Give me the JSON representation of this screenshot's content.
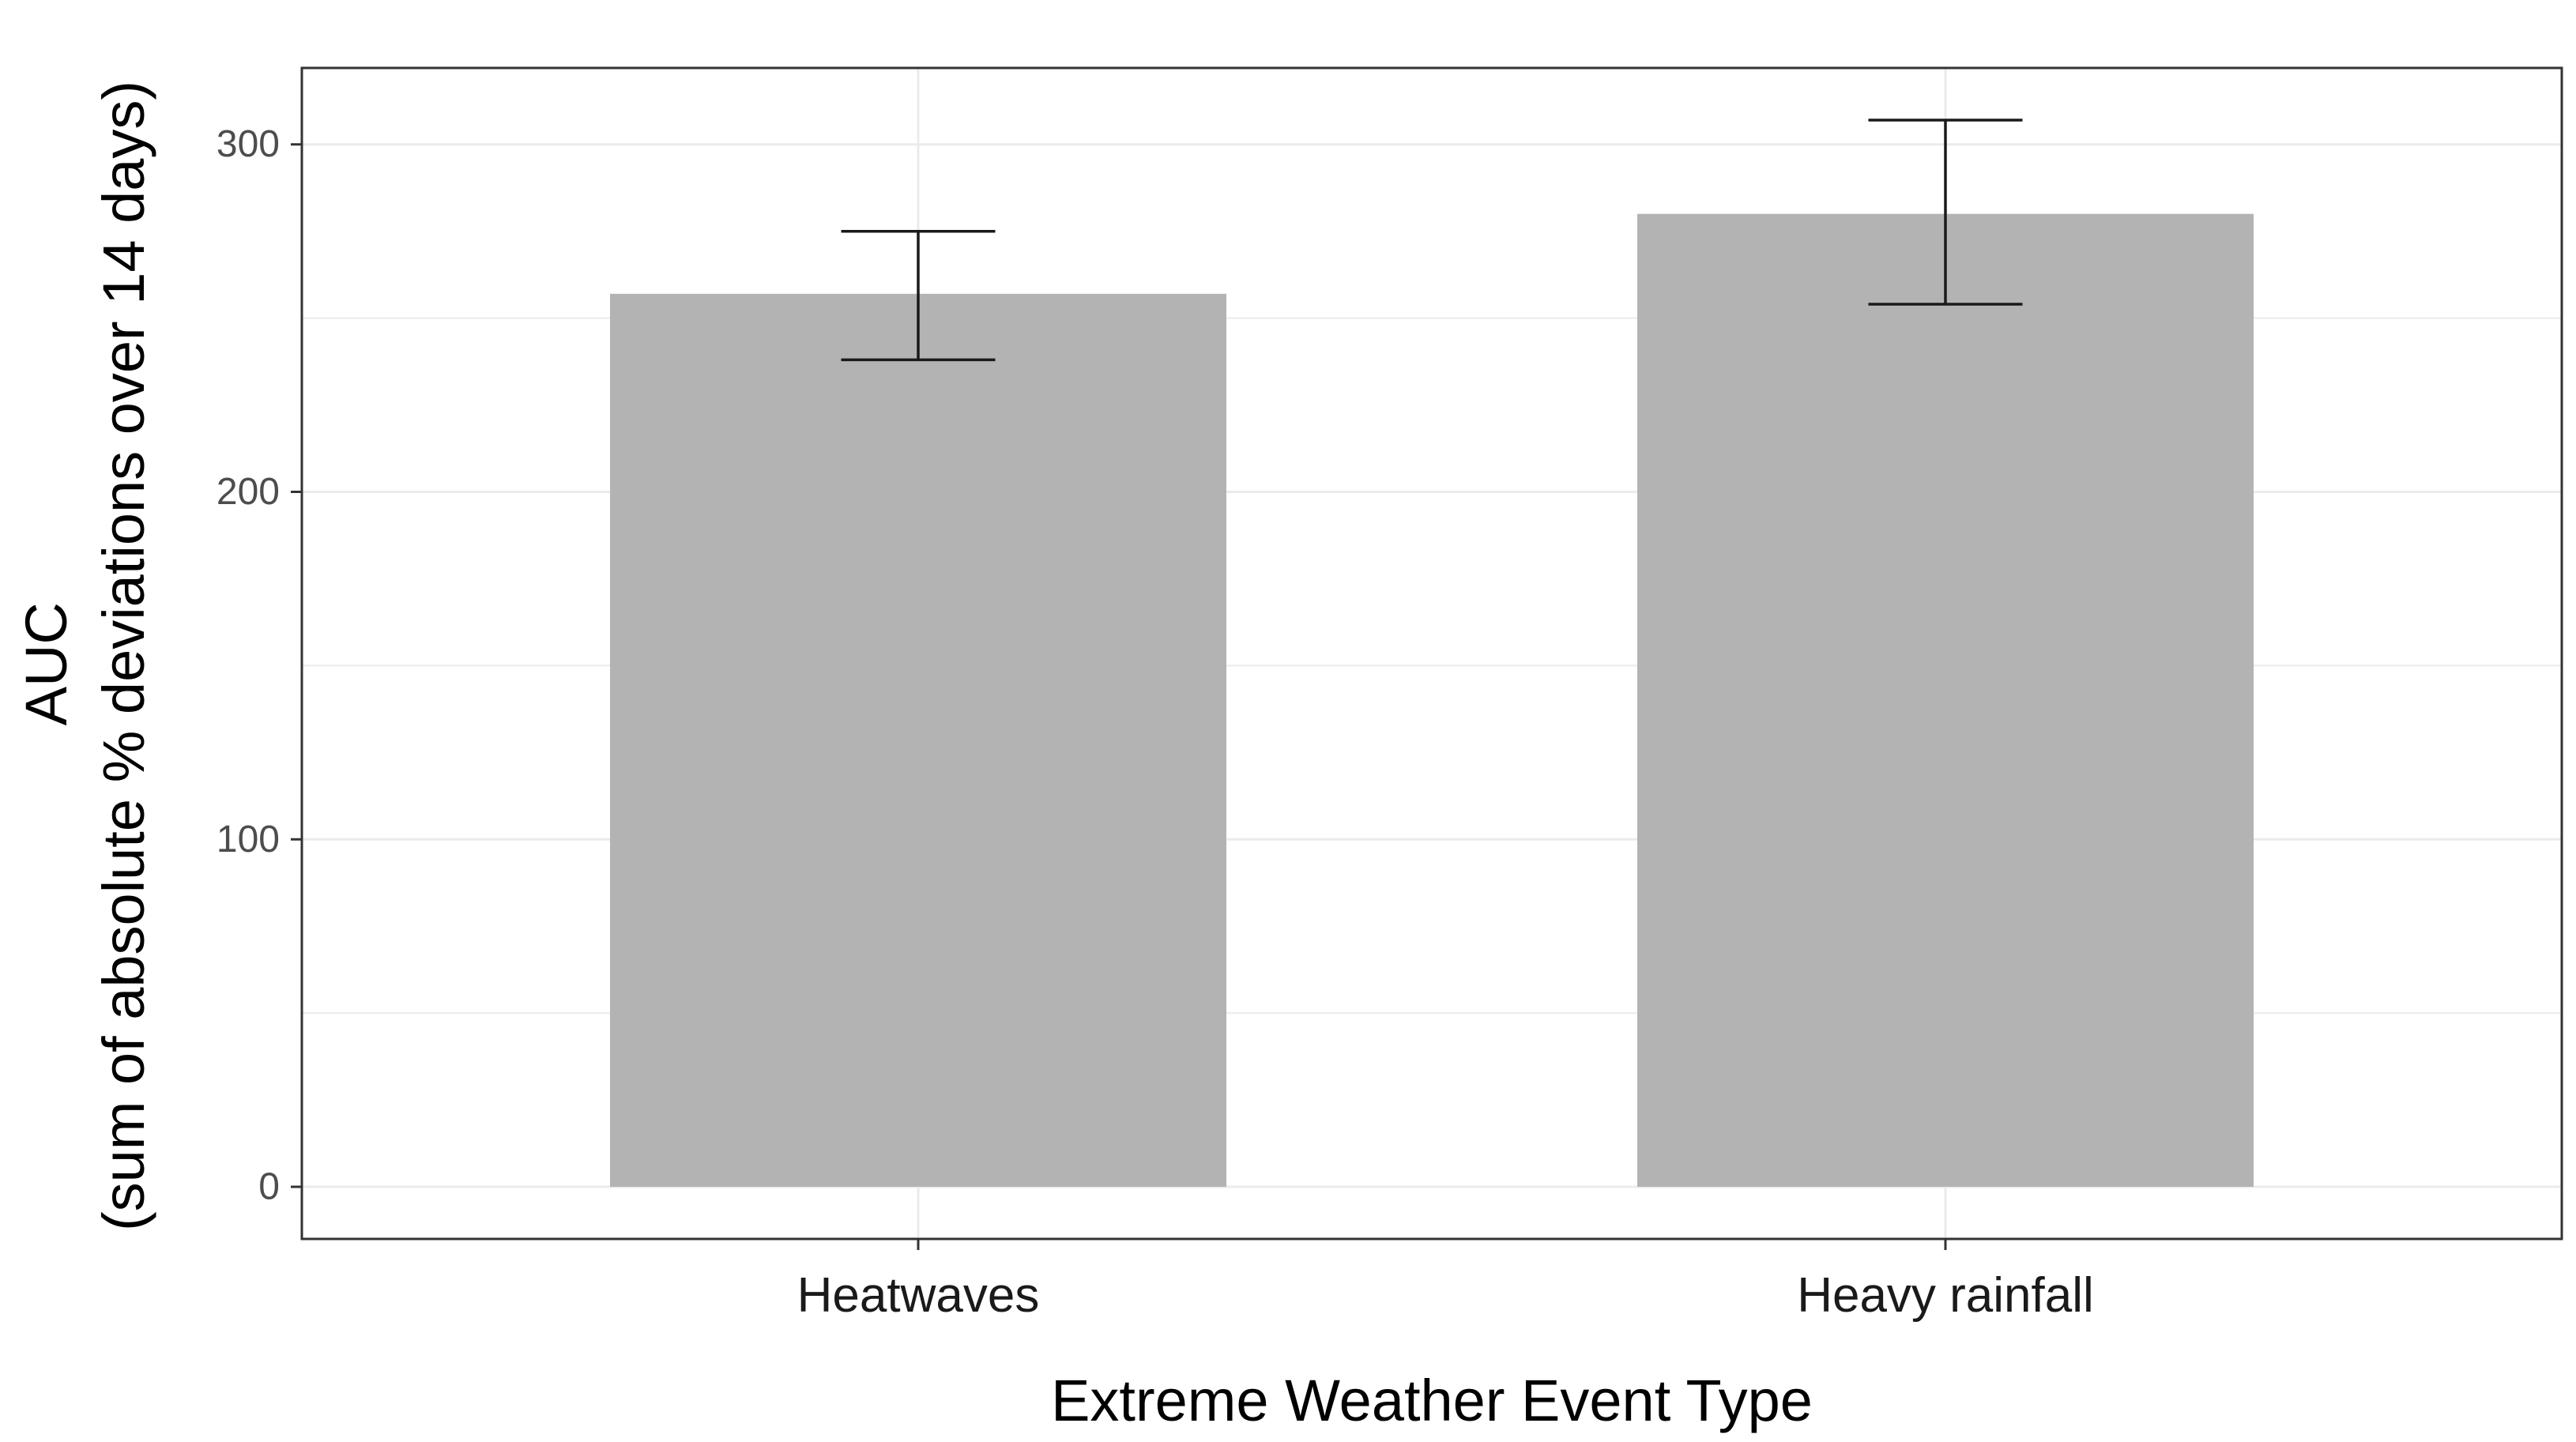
{
  "chart_data": {
    "type": "bar",
    "categories": [
      "Heatwaves",
      "Heavy rainfall"
    ],
    "values": [
      257,
      280
    ],
    "error_bars": [
      {
        "lower": 238,
        "upper": 275
      },
      {
        "lower": 254,
        "upper": 307
      }
    ],
    "xlabel": "Extreme Weather Event Type",
    "ylabel": [
      "AUC",
      "(sum of absolute % deviations over 14 days)"
    ],
    "ylim": [
      -15,
      322
    ],
    "yticks": [
      0,
      100,
      200,
      300
    ],
    "grid": true,
    "legend": "none",
    "colors": {
      "bar": "#b3b3b3",
      "error_bar": "#1a1a1a",
      "grid": "#ebebeb",
      "panel_border": "#333333"
    }
  }
}
